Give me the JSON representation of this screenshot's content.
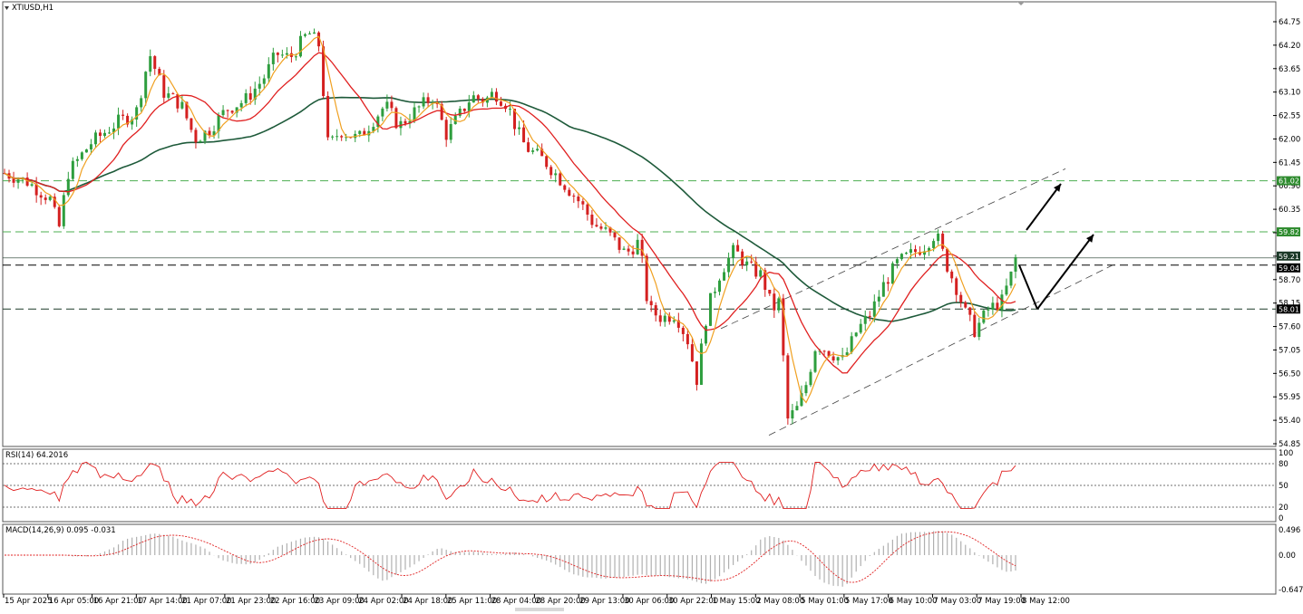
{
  "window": {
    "title": "XTIUSD,H1",
    "collapse_icon": "triangle-down-icon"
  },
  "main_chart": {
    "price_axis_labels": [
      "64.75",
      "64.20",
      "63.65",
      "63.10",
      "62.55",
      "62.00",
      "61.45",
      "60.90",
      "60.35",
      "59.80",
      "59.25",
      "58.70",
      "58.15",
      "57.60",
      "57.05",
      "56.50",
      "55.95",
      "55.40",
      "54.85"
    ],
    "price_range": [
      54.85,
      64.75
    ],
    "level_tags": [
      {
        "label": "61.02",
        "color": "#2e8b2e"
      },
      {
        "label": "59.82",
        "color": "#2e8b2e"
      },
      {
        "label": "59.21",
        "color": "#1c3a28"
      },
      {
        "label": "59.04",
        "color": "#000000"
      },
      {
        "label": "58.01",
        "color": "#000000"
      }
    ]
  },
  "rsi_panel": {
    "title": "RSI(14) 64.2016",
    "axis_labels": [
      "100",
      "80",
      "50",
      "20",
      "0"
    ]
  },
  "macd_panel": {
    "title": "MACD(14,26,9) 0.095 -0.031",
    "axis_labels": [
      "0.496",
      "0.00",
      "-0.647"
    ]
  },
  "time_axis_labels": [
    "15 Apr 2025",
    "16 Apr 05:00",
    "16 Apr 21:00",
    "17 Apr 14:00",
    "21 Apr 07:00",
    "21 Apr 23:00",
    "22 Apr 16:00",
    "23 Apr 09:00",
    "24 Apr 02:00",
    "24 Apr 18:00",
    "25 Apr 11:00",
    "28 Apr 04:00",
    "28 Apr 20:00",
    "29 Apr 13:00",
    "30 Apr 06:00",
    "30 Apr 22:00",
    "1 May 15:00",
    "2 May 08:00",
    "5 May 01:00",
    "5 May 17:00",
    "6 May 10:00",
    "7 May 03:00",
    "7 May 19:00",
    "8 May 12:00"
  ],
  "colors": {
    "bull_candle": "#2e9e3e",
    "bear_candle": "#d42020",
    "ma_fast": "#f0a020",
    "ma_mid": "#e02020",
    "ma_slow": "#1e5a3a",
    "rsi_line": "#e02020",
    "macd_signal": "#e02020",
    "macd_hist": "#b0b0b0"
  }
}
